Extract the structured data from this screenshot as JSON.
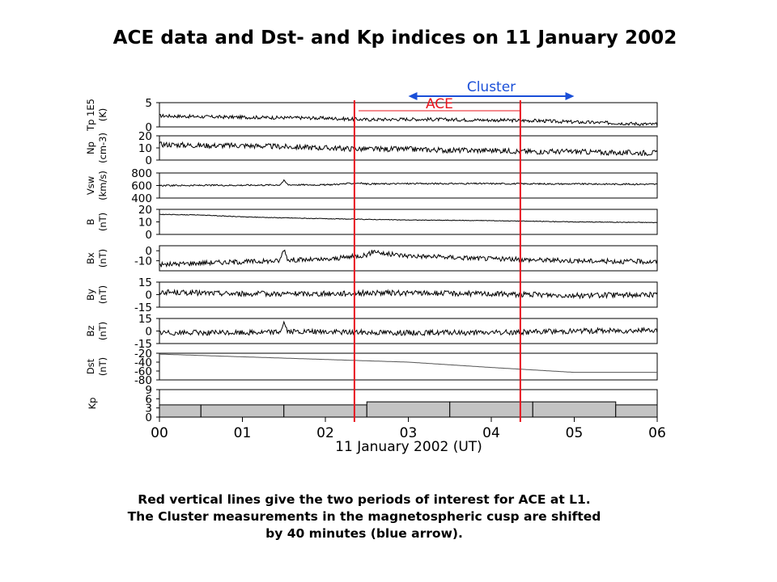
{
  "slide": {
    "title": "ACE data and Dst- and Kp indices on 11 January 2002",
    "caption": [
      "Red vertical lines give the two periods of interest for ACE at L1.",
      "The Cluster measurements in the magnetospheric cusp are shifted",
      "by 40 minutes (blue arrow)."
    ]
  },
  "chart_data": {
    "type": "line",
    "title": "",
    "xlabel": "11 January 2002 (UT)",
    "x_ticks": [
      "00",
      "01",
      "02",
      "03",
      "04",
      "05",
      "06"
    ],
    "xlim": [
      0,
      6
    ],
    "x_unit": "hours UT",
    "annotations": {
      "red_lines_x": [
        2.35,
        4.35
      ],
      "red_line_color": "#e8141e",
      "ace_label": "ACE",
      "ace_bar": [
        2.4,
        4.35
      ],
      "cluster_label": "Cluster",
      "cluster_arrow": [
        3.0,
        5.0
      ],
      "blue_color": "#1a4fd8"
    },
    "panels": [
      {
        "name": "Tp 1E5",
        "unit": "(K)",
        "ylim": [
          0,
          5
        ],
        "ticks": [
          "5",
          "0"
        ],
        "tick_values": [
          5,
          0
        ],
        "x": [
          0,
          0.5,
          1,
          1.5,
          2,
          2.5,
          3,
          3.5,
          4,
          4.5,
          5,
          5.5,
          6
        ],
        "y": [
          2.3,
          2.1,
          2.0,
          1.9,
          1.8,
          1.5,
          1.6,
          1.5,
          1.4,
          1.3,
          1.0,
          0.8,
          0.5
        ],
        "noise": 0.35
      },
      {
        "name": "Np",
        "unit": "(cm-3)",
        "ylim": [
          0,
          20
        ],
        "ticks": [
          "20",
          "10",
          "0"
        ],
        "tick_values": [
          20,
          10,
          0
        ],
        "x": [
          0,
          0.5,
          1,
          1.5,
          2,
          2.5,
          3,
          3.5,
          4,
          4.5,
          5,
          5.5,
          6
        ],
        "y": [
          13,
          12,
          12,
          11,
          10,
          9,
          9,
          8,
          8,
          7,
          7,
          6,
          6
        ],
        "noise": 2.2
      },
      {
        "name": "Vsw",
        "unit": "(km/s)",
        "ylim": [
          400,
          800
        ],
        "ticks": [
          "800",
          "600",
          "400"
        ],
        "tick_values": [
          800,
          600,
          400
        ],
        "x": [
          0,
          1,
          1.45,
          1.5,
          1.55,
          2,
          2.4,
          2.5,
          3,
          4,
          5,
          6
        ],
        "y": [
          600,
          605,
          610,
          680,
          612,
          610,
          640,
          625,
          630,
          630,
          625,
          620
        ],
        "noise": 12
      },
      {
        "name": "B",
        "unit": "(nT)",
        "ylim": [
          0,
          20
        ],
        "ticks": [
          "20",
          "10",
          "0"
        ],
        "tick_values": [
          20,
          10,
          0
        ],
        "x": [
          0,
          0.5,
          1,
          2,
          3,
          4,
          5,
          6
        ],
        "y": [
          16,
          15.5,
          14,
          12.5,
          11.5,
          11,
          10,
          9.5
        ],
        "noise": 0.25
      },
      {
        "name": "Bx",
        "unit": "(nT)",
        "ylim": [
          -20,
          5
        ],
        "ticks": [
          "0",
          "-10"
        ],
        "tick_values": [
          0,
          -10
        ],
        "x": [
          0,
          0.5,
          1,
          1.45,
          1.5,
          1.55,
          2,
          2.5,
          2.6,
          2.7,
          3,
          4,
          5,
          6
        ],
        "y": [
          -14,
          -12,
          -11,
          -10,
          2,
          -9,
          -9,
          -4,
          0,
          -3,
          -5,
          -8,
          -10,
          -11
        ],
        "noise": 2.4
      },
      {
        "name": "By",
        "unit": "(nT)",
        "ylim": [
          -15,
          15
        ],
        "ticks": [
          "15",
          "0",
          "-15"
        ],
        "tick_values": [
          15,
          0,
          -15
        ],
        "x": [
          0,
          0.5,
          1,
          1.5,
          2,
          2.5,
          3,
          4,
          4.5,
          5,
          6
        ],
        "y": [
          3,
          2,
          1,
          1,
          1,
          2,
          2,
          1,
          0,
          -1,
          0
        ],
        "noise": 3.2
      },
      {
        "name": "Bz",
        "unit": "(nT)",
        "ylim": [
          -15,
          15
        ],
        "ticks": [
          "15",
          "0",
          "-15"
        ],
        "tick_values": [
          15,
          0,
          -15
        ],
        "x": [
          0,
          0.5,
          1,
          1.45,
          1.5,
          1.55,
          2,
          3,
          4,
          5,
          6
        ],
        "y": [
          -2,
          -2,
          -2,
          -1,
          10,
          -1,
          -1,
          -2,
          -2,
          0,
          1
        ],
        "noise": 3.2
      },
      {
        "name": "Dst",
        "unit": "(nT)",
        "ylim": [
          -80,
          -20
        ],
        "ticks": [
          "-20",
          "-40",
          "-60",
          "-80"
        ],
        "tick_values": [
          -20,
          -40,
          -60,
          -80
        ],
        "x": [
          0,
          1,
          2,
          3,
          4,
          5,
          6
        ],
        "y": [
          -22,
          -28,
          -34,
          -40,
          -52,
          -63,
          -63
        ],
        "noise": 0
      },
      {
        "name": "Kp",
        "unit": "",
        "ylim": [
          0,
          9
        ],
        "ticks": [
          "9",
          "6",
          "3",
          "0"
        ],
        "tick_values": [
          9,
          6,
          3,
          0
        ],
        "kp_blocks": [
          {
            "start": 0,
            "end": 0.5,
            "value": 4
          },
          {
            "start": 0.5,
            "end": 1.5,
            "value": 4
          },
          {
            "start": 1.5,
            "end": 2.5,
            "value": 4
          },
          {
            "start": 2.5,
            "end": 3.5,
            "value": 5
          },
          {
            "start": 3.5,
            "end": 4.5,
            "value": 5
          },
          {
            "start": 4.5,
            "end": 5.5,
            "value": 5
          },
          {
            "start": 5.5,
            "end": 6,
            "value": 4
          }
        ]
      }
    ]
  }
}
